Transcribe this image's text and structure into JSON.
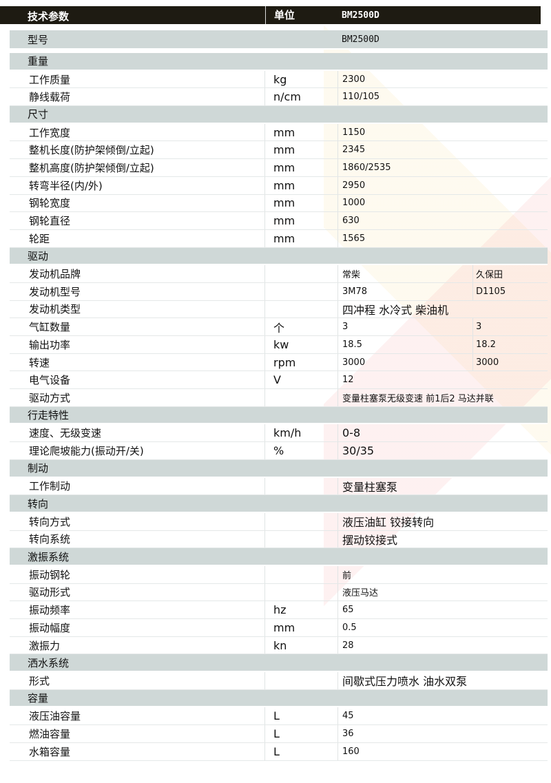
{
  "header": {
    "param": "技术参数",
    "unit": "单位",
    "model": "BM2500D"
  },
  "model_row": {
    "label": "型号",
    "value": "BM2500D"
  },
  "sections": [
    {
      "title": "重量",
      "rows": [
        {
          "label": "工作质量",
          "unit": "kg",
          "values": [
            "2300"
          ]
        },
        {
          "label": "静线载荷",
          "unit": "n/cm",
          "values": [
            "110/105"
          ]
        }
      ]
    },
    {
      "title": "尺寸",
      "rows": [
        {
          "label": "工作宽度",
          "unit": "mm",
          "values": [
            "1150"
          ]
        },
        {
          "label": "整机长度(防护架倾倒/立起)",
          "unit": "mm",
          "values": [
            "2345"
          ]
        },
        {
          "label": "整机高度(防护架倾倒/立起)",
          "unit": "mm",
          "values": [
            "1860/2535"
          ]
        },
        {
          "label": "转弯半径(内/外)",
          "unit": "mm",
          "values": [
            "2950"
          ]
        },
        {
          "label": "钢轮宽度",
          "unit": "mm",
          "values": [
            "1000"
          ]
        },
        {
          "label": "钢轮直径",
          "unit": "mm",
          "values": [
            "630"
          ]
        },
        {
          "label": "轮距",
          "unit": "mm",
          "values": [
            "1565"
          ]
        }
      ]
    },
    {
      "title": "驱动",
      "rows": [
        {
          "label": "发动机品牌",
          "unit": "",
          "values": [
            "常柴",
            "久保田"
          ]
        },
        {
          "label": "发动机型号",
          "unit": "",
          "values": [
            "3M78",
            "D1105"
          ]
        },
        {
          "label": "发动机类型",
          "unit": "",
          "values": [
            "四冲程 水冷式 柴油机"
          ]
        },
        {
          "label": "气缸数量",
          "unit": "个",
          "values": [
            "3",
            "3"
          ]
        },
        {
          "label": "输出功率",
          "unit": "kw",
          "values": [
            "18.5",
            "18.2"
          ]
        },
        {
          "label": "转速",
          "unit": "rpm",
          "values": [
            "3000",
            "3000"
          ]
        },
        {
          "label": "电气设备",
          "unit": "V",
          "values": [
            "12"
          ]
        },
        {
          "label": "驱动方式",
          "unit": "",
          "values": [
            "变量柱塞泵无级变速  前1后2  马达并联"
          ]
        }
      ]
    },
    {
      "title": "行走特性",
      "rows": [
        {
          "label": "速度、无级变速",
          "unit": "km/h",
          "values": [
            "0-8"
          ]
        },
        {
          "label": "理论爬坡能力(振动开/关)",
          "unit": "%",
          "values": [
            "30/35"
          ]
        }
      ]
    },
    {
      "title": "制动",
      "rows": [
        {
          "label": "工作制动",
          "unit": "",
          "values": [
            "变量柱塞泵"
          ]
        }
      ]
    },
    {
      "title": "转向",
      "rows": [
        {
          "label": "转向方式",
          "unit": "",
          "values": [
            "液压油缸 铰接转向"
          ]
        },
        {
          "label": "转向系统",
          "unit": "",
          "values": [
            "摆动铰接式"
          ]
        }
      ]
    },
    {
      "title": "激振系统",
      "rows": [
        {
          "label": "振动钢轮",
          "unit": "",
          "values": [
            "前"
          ]
        },
        {
          "label": "驱动形式",
          "unit": "",
          "values": [
            "液压马达"
          ]
        },
        {
          "label": "振动频率",
          "unit": "hz",
          "values": [
            "65"
          ]
        },
        {
          "label": "振动幅度",
          "unit": "mm",
          "values": [
            "0.5"
          ]
        },
        {
          "label": "激振力",
          "unit": "kn",
          "values": [
            "28"
          ]
        }
      ]
    },
    {
      "title": "洒水系统",
      "rows": [
        {
          "label": "形式",
          "unit": "",
          "values": [
            "间歇式压力喷水  油水双泵"
          ]
        }
      ]
    },
    {
      "title": "容量",
      "rows": [
        {
          "label": "液压油容量",
          "unit": "L",
          "values": [
            "45"
          ]
        },
        {
          "label": "燃油容量",
          "unit": "L",
          "values": [
            "36"
          ]
        },
        {
          "label": "水箱容量",
          "unit": "L",
          "values": [
            "160"
          ]
        }
      ]
    }
  ]
}
